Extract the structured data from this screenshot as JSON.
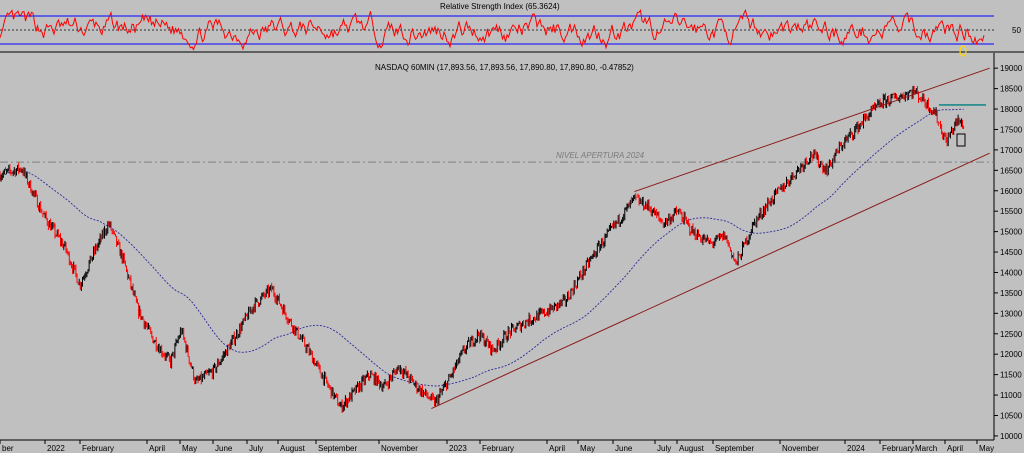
{
  "chart_data": [
    {
      "type": "line",
      "title": "Relative Strength Index (65.3624)",
      "levels": [
        70,
        30
      ],
      "midline": 50,
      "y_tick_labels": [
        {
          "value": 50,
          "label": "50"
        }
      ],
      "colors": {
        "series": "#ff0000",
        "levels": "#0000ff",
        "midline": "#000000"
      }
    },
    {
      "type": "line",
      "title": "NASDAQ 60MIN (17,893.56, 17,893.56, 17,890.80, 17,890.80, -0.47852)",
      "ylim": [
        9900,
        19200
      ],
      "y_ticks": [
        10000,
        10500,
        11000,
        11500,
        12000,
        12500,
        13000,
        13500,
        14000,
        14500,
        15000,
        15500,
        16000,
        16500,
        17000,
        17500,
        18000,
        18500,
        19000
      ],
      "x_tick_labels": [
        "ber",
        "2022",
        "February",
        "April",
        "May",
        "June",
        "July",
        "August",
        "September",
        "November",
        "2023",
        "February",
        "April",
        "May",
        "June",
        "July",
        "August",
        "September",
        "November",
        "2024",
        "February",
        "March",
        "April",
        "May"
      ],
      "anchor_points": [
        {
          "month": 0,
          "value": 16400
        },
        {
          "month": 0.6,
          "value": 16550
        },
        {
          "month": 1.2,
          "value": 15400
        },
        {
          "month": 1.8,
          "value": 14600
        },
        {
          "month": 2.2,
          "value": 13700
        },
        {
          "month": 2.6,
          "value": 14500
        },
        {
          "month": 3.0,
          "value": 15200
        },
        {
          "month": 3.4,
          "value": 14300
        },
        {
          "month": 3.8,
          "value": 13100
        },
        {
          "month": 4.2,
          "value": 12400
        },
        {
          "month": 4.7,
          "value": 11800
        },
        {
          "month": 5.0,
          "value": 12600
        },
        {
          "month": 5.4,
          "value": 11300
        },
        {
          "month": 5.9,
          "value": 11600
        },
        {
          "month": 6.4,
          "value": 12300
        },
        {
          "month": 7.0,
          "value": 13200
        },
        {
          "month": 7.5,
          "value": 13600
        },
        {
          "month": 8.0,
          "value": 12800
        },
        {
          "month": 8.5,
          "value": 12100
        },
        {
          "month": 9.0,
          "value": 11300
        },
        {
          "month": 9.4,
          "value": 10700
        },
        {
          "month": 9.8,
          "value": 11100
        },
        {
          "month": 10.2,
          "value": 11500
        },
        {
          "month": 10.6,
          "value": 11200
        },
        {
          "month": 11.0,
          "value": 11700
        },
        {
          "month": 11.5,
          "value": 11200
        },
        {
          "month": 12.0,
          "value": 10800
        },
        {
          "month": 12.4,
          "value": 11400
        },
        {
          "month": 12.8,
          "value": 12100
        },
        {
          "month": 13.2,
          "value": 12500
        },
        {
          "month": 13.6,
          "value": 12100
        },
        {
          "month": 14.0,
          "value": 12500
        },
        {
          "month": 14.5,
          "value": 12800
        },
        {
          "month": 15.0,
          "value": 13000
        },
        {
          "month": 15.6,
          "value": 13300
        },
        {
          "month": 16.0,
          "value": 13900
        },
        {
          "month": 16.5,
          "value": 14600
        },
        {
          "month": 17.0,
          "value": 15200
        },
        {
          "month": 17.5,
          "value": 15800
        },
        {
          "month": 17.9,
          "value": 15600
        },
        {
          "month": 18.3,
          "value": 15200
        },
        {
          "month": 18.7,
          "value": 15500
        },
        {
          "month": 19.1,
          "value": 15000
        },
        {
          "month": 19.6,
          "value": 14700
        },
        {
          "month": 20.0,
          "value": 14900
        },
        {
          "month": 20.3,
          "value": 14200
        },
        {
          "month": 20.8,
          "value": 15200
        },
        {
          "month": 21.2,
          "value": 15700
        },
        {
          "month": 21.6,
          "value": 16100
        },
        {
          "month": 22.0,
          "value": 16500
        },
        {
          "month": 22.4,
          "value": 16900
        },
        {
          "month": 22.8,
          "value": 16500
        },
        {
          "month": 23.2,
          "value": 17100
        },
        {
          "month": 23.6,
          "value": 17500
        },
        {
          "month": 24.0,
          "value": 17900
        },
        {
          "month": 24.4,
          "value": 18200
        },
        {
          "month": 24.8,
          "value": 18300
        },
        {
          "month": 25.2,
          "value": 18450
        },
        {
          "month": 25.5,
          "value": 18200
        },
        {
          "month": 25.8,
          "value": 17900
        },
        {
          "month": 26.1,
          "value": 17200
        },
        {
          "month": 26.4,
          "value": 17700
        },
        {
          "month": 26.6,
          "value": 17600
        }
      ],
      "channel_upper": [
        {
          "month": 17.5,
          "value": 15980
        },
        {
          "month": 27.3,
          "value": 19000
        }
      ],
      "channel_lower": [
        {
          "month": 11.9,
          "value": 10670
        },
        {
          "month": 27.3,
          "value": 16920
        }
      ],
      "reference_line": {
        "value": 16700,
        "label": "NIVEL APERTURA 2024"
      },
      "resistance_line": {
        "month_start": 25.9,
        "month_end": 27.2,
        "value": 18100
      },
      "colors": {
        "up_bars": "#000000",
        "down_bars": "#ff0000",
        "moving_average": "#2a2a9c",
        "channel": "#8b1a1a",
        "resistance": "#008080",
        "reference": "#808080"
      }
    }
  ]
}
